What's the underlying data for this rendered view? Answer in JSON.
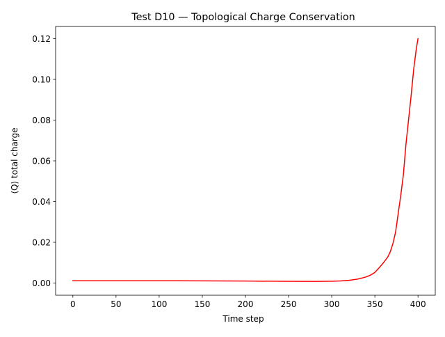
{
  "chart_data": {
    "type": "line",
    "title": "Test D10 — Topological Charge Conservation",
    "xlabel": "Time step",
    "ylabel": "⟨Q⟩ total charge",
    "xlim": [
      -20,
      420
    ],
    "ylim": [
      -0.006,
      0.126
    ],
    "xticks": [
      0,
      50,
      100,
      150,
      200,
      250,
      300,
      350,
      400
    ],
    "xtick_labels": [
      "0",
      "50",
      "100",
      "150",
      "200",
      "250",
      "300",
      "350",
      "400"
    ],
    "yticks": [
      0.0,
      0.02,
      0.04,
      0.06,
      0.08,
      0.1,
      0.12
    ],
    "ytick_labels": [
      "0.00",
      "0.02",
      "0.04",
      "0.06",
      "0.08",
      "0.10",
      "0.12"
    ],
    "grid": false,
    "legend": false,
    "series": [
      {
        "color": "#ff0000",
        "x": [
          0,
          50,
          100,
          150,
          200,
          250,
          280,
          300,
          310,
          320,
          330,
          340,
          345,
          350,
          355,
          360,
          365,
          368,
          371,
          374,
          377,
          380,
          383,
          386,
          389,
          392,
          395,
          398,
          400
        ],
        "y": [
          0.0011,
          0.0011,
          0.0011,
          0.00105,
          0.00095,
          0.00085,
          0.0008,
          0.0009,
          0.001,
          0.0013,
          0.0019,
          0.003,
          0.0039,
          0.0052,
          0.0075,
          0.01,
          0.0128,
          0.0155,
          0.0195,
          0.025,
          0.034,
          0.043,
          0.053,
          0.068,
          0.08,
          0.092,
          0.105,
          0.115,
          0.12
        ]
      }
    ]
  }
}
